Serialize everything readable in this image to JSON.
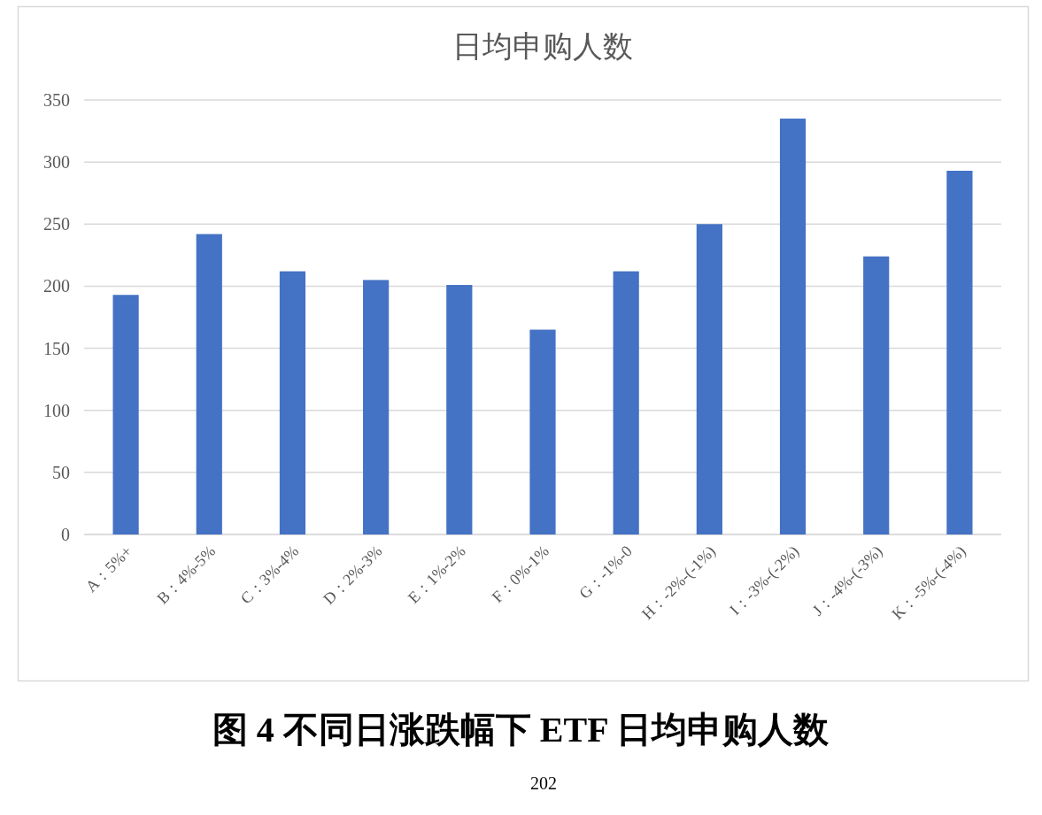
{
  "chart_data": {
    "type": "bar",
    "title": "日均申购人数",
    "categories": [
      "A：5%+",
      "B：4%-5%",
      "C：3%-4%",
      "D：2%-3%",
      "E：1%-2%",
      "F：0%-1%",
      "G：-1%-0",
      "H：-2%-(-1%)",
      "I：-3%-(-2%)",
      "J：-4%-(-3%)",
      "K：-5%-(-4%)"
    ],
    "values": [
      193,
      242,
      212,
      205,
      201,
      165,
      212,
      250,
      335,
      224,
      293
    ],
    "color": "#4472c4",
    "ylim": [
      0,
      350
    ],
    "yticks": [
      0,
      50,
      100,
      150,
      200,
      250,
      300,
      350
    ],
    "grid": "y",
    "annotations": [
      "图 4 不同日涨跌幅下 ETF 日均申购人数",
      "202"
    ]
  }
}
